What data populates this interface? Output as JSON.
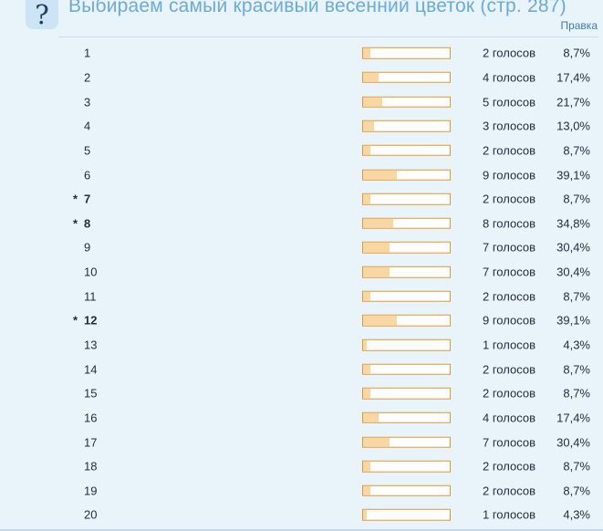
{
  "header": {
    "icon": "?",
    "title": "Выбираем самый красивый весенний цветок (стр. 287)",
    "edit_link": "Правка"
  },
  "poll": {
    "star_marker": "*",
    "rows": [
      {
        "number": "1",
        "starred": false,
        "votes_label": "2 голосов",
        "percent_label": "8,7%",
        "percent_value": 8.7
      },
      {
        "number": "2",
        "starred": false,
        "votes_label": "4 голосов",
        "percent_label": "17,4%",
        "percent_value": 17.4
      },
      {
        "number": "3",
        "starred": false,
        "votes_label": "5 голосов",
        "percent_label": "21,7%",
        "percent_value": 21.7
      },
      {
        "number": "4",
        "starred": false,
        "votes_label": "3 голосов",
        "percent_label": "13,0%",
        "percent_value": 13.0
      },
      {
        "number": "5",
        "starred": false,
        "votes_label": "2 голосов",
        "percent_label": "8,7%",
        "percent_value": 8.7
      },
      {
        "number": "6",
        "starred": false,
        "votes_label": "9 голосов",
        "percent_label": "39,1%",
        "percent_value": 39.1
      },
      {
        "number": "7",
        "starred": true,
        "votes_label": "2 голосов",
        "percent_label": "8,7%",
        "percent_value": 8.7
      },
      {
        "number": "8",
        "starred": true,
        "votes_label": "8 голосов",
        "percent_label": "34,8%",
        "percent_value": 34.8
      },
      {
        "number": "9",
        "starred": false,
        "votes_label": "7 голосов",
        "percent_label": "30,4%",
        "percent_value": 30.4
      },
      {
        "number": "10",
        "starred": false,
        "votes_label": "7 голосов",
        "percent_label": "30,4%",
        "percent_value": 30.4
      },
      {
        "number": "11",
        "starred": false,
        "votes_label": "2 голосов",
        "percent_label": "8,7%",
        "percent_value": 8.7
      },
      {
        "number": "12",
        "starred": true,
        "votes_label": "9 голосов",
        "percent_label": "39,1%",
        "percent_value": 39.1
      },
      {
        "number": "13",
        "starred": false,
        "votes_label": "1 голосов",
        "percent_label": "4,3%",
        "percent_value": 4.3
      },
      {
        "number": "14",
        "starred": false,
        "votes_label": "2 голосов",
        "percent_label": "8,7%",
        "percent_value": 8.7
      },
      {
        "number": "15",
        "starred": false,
        "votes_label": "2 голосов",
        "percent_label": "8,7%",
        "percent_value": 8.7
      },
      {
        "number": "16",
        "starred": false,
        "votes_label": "4 голосов",
        "percent_label": "17,4%",
        "percent_value": 17.4
      },
      {
        "number": "17",
        "starred": false,
        "votes_label": "7 голосов",
        "percent_label": "30,4%",
        "percent_value": 30.4
      },
      {
        "number": "18",
        "starred": false,
        "votes_label": "2 голосов",
        "percent_label": "8,7%",
        "percent_value": 8.7
      },
      {
        "number": "19",
        "starred": false,
        "votes_label": "2 голосов",
        "percent_label": "8,7%",
        "percent_value": 8.7
      },
      {
        "number": "20",
        "starred": false,
        "votes_label": "1 голосов",
        "percent_label": "4,3%",
        "percent_value": 4.3
      }
    ]
  },
  "colors": {
    "page_background": "#e9f3fa",
    "icon_box_background": "#cde4f4",
    "title_blue": "#6aabd8",
    "link_blue": "#3c7cad",
    "text_dark": "#1e2c3c",
    "bar_border": "#dd9933",
    "bar_fill": "#f8d7a5"
  },
  "chart_data": {
    "type": "bar",
    "title": "Выбираем самый красивый весенний цветок (стр. 287)",
    "categories": [
      "1",
      "2",
      "3",
      "4",
      "5",
      "6",
      "7",
      "8",
      "9",
      "10",
      "11",
      "12",
      "13",
      "14",
      "15",
      "16",
      "17",
      "18",
      "19",
      "20"
    ],
    "values": [
      8.7,
      17.4,
      21.7,
      13.0,
      8.7,
      39.1,
      8.7,
      34.8,
      30.4,
      30.4,
      8.7,
      39.1,
      4.3,
      8.7,
      8.7,
      17.4,
      30.4,
      8.7,
      8.7,
      4.3
    ],
    "votes": [
      2,
      4,
      5,
      3,
      2,
      9,
      2,
      8,
      7,
      7,
      2,
      9,
      1,
      2,
      2,
      4,
      7,
      2,
      2,
      1
    ],
    "starred_options": [
      "7",
      "8",
      "12"
    ],
    "xlabel": "",
    "ylabel": "",
    "value_unit": "%",
    "xlim": [
      0,
      100
    ],
    "orientation": "horizontal",
    "legend": "off",
    "grid": "off"
  }
}
